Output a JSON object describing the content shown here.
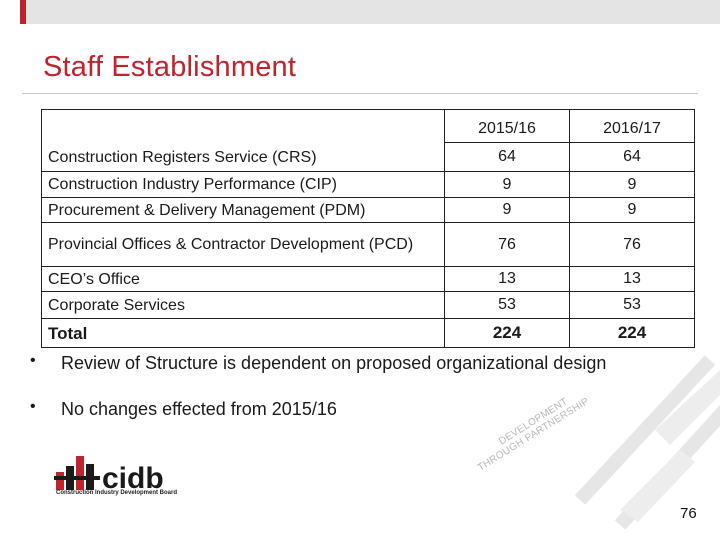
{
  "slide": {
    "title": "Staff Establishment",
    "page_number": "76"
  },
  "table": {
    "years": [
      "2015/16",
      "2016/17"
    ],
    "rows": [
      {
        "label": "Construction Registers Service (CRS)",
        "v1": "64",
        "v2": "64"
      },
      {
        "label": "Construction Industry Performance (CIP)",
        "v1": "9",
        "v2": "9"
      },
      {
        "label": "Procurement & Delivery Management (PDM)",
        "v1": "9",
        "v2": "9"
      },
      {
        "label": "Provincial Offices & Contractor Development (PCD)",
        "v1": "76",
        "v2": "76"
      },
      {
        "label": "CEO’s Office",
        "v1": "13",
        "v2": "13"
      },
      {
        "label": "Corporate Services",
        "v1": "53",
        "v2": "53"
      }
    ],
    "total": {
      "label": "Total",
      "v1": "224",
      "v2": "224"
    }
  },
  "bullets": [
    "Review of Structure is dependent on proposed organizational design",
    "No changes effected from 2015/16"
  ],
  "logo": {
    "text": "cidb",
    "caption": "Construction Industry Development Board"
  },
  "slogan": {
    "line1": "DEVELOPMENT",
    "line2": "THROUGH PARTNERSHIP"
  },
  "colors": {
    "accent": "#c0232b",
    "watermark": "#e6e6e6"
  }
}
